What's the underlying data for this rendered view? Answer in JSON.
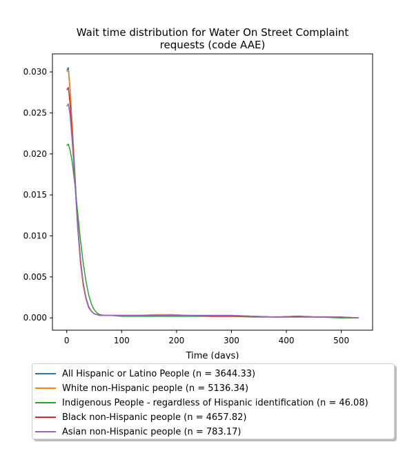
{
  "chart_data": {
    "type": "line",
    "title": "Wait time distribution  for Water On Street Complaint requests (code AAE)",
    "title_lines": [
      "Wait time distribution  for Water On Street Complaint",
      "requests (code AAE)"
    ],
    "xlabel": "Time (days)",
    "ylabel": "",
    "xlim": [
      -26,
      557
    ],
    "ylim": [
      -0.0015,
      0.0322
    ],
    "xticks": [
      0,
      100,
      200,
      300,
      400,
      500
    ],
    "xtick_labels": [
      "0",
      "100",
      "200",
      "300",
      "400",
      "500"
    ],
    "yticks": [
      0.0,
      0.005,
      0.01,
      0.015,
      0.02,
      0.025,
      0.03
    ],
    "ytick_labels": [
      "0.000",
      "0.005",
      "0.010",
      "0.015",
      "0.020",
      "0.025",
      "0.030"
    ],
    "grid": false,
    "legend_position": "below",
    "series": [
      {
        "name": "All Hispanic or Latino People (n = 3644.33)",
        "color": "#1f77b4",
        "x": [
          0,
          3,
          6,
          10,
          15,
          20,
          25,
          30,
          35,
          40,
          45,
          50,
          55,
          60,
          70,
          80,
          100,
          130,
          160,
          190,
          220,
          260,
          300,
          340,
          380,
          420,
          460,
          500,
          532
        ],
        "y": [
          0.0302,
          0.0305,
          0.028,
          0.0235,
          0.0175,
          0.0115,
          0.0072,
          0.0042,
          0.0024,
          0.0013,
          0.0008,
          0.0005,
          0.0004,
          0.0003,
          0.0003,
          0.0003,
          0.0003,
          0.0003,
          0.0003,
          0.0004,
          0.0003,
          0.0003,
          0.0003,
          0.0002,
          0.0001,
          0.0002,
          0.0001,
          0.0001,
          0.0
        ]
      },
      {
        "name": "White non-Hispanic people (n = 5136.34)",
        "color": "#ff7f0e",
        "x": [
          0,
          3,
          6,
          10,
          15,
          20,
          25,
          30,
          35,
          40,
          45,
          50,
          55,
          60,
          70,
          80,
          100,
          130,
          160,
          190,
          220,
          260,
          300,
          340,
          380,
          420,
          460,
          500,
          532
        ],
        "y": [
          0.03,
          0.0302,
          0.0278,
          0.023,
          0.0168,
          0.011,
          0.0068,
          0.004,
          0.0023,
          0.0013,
          0.0008,
          0.0005,
          0.0004,
          0.0003,
          0.0003,
          0.0003,
          0.0003,
          0.0003,
          0.0004,
          0.0004,
          0.0003,
          0.0003,
          0.0003,
          0.0002,
          0.0001,
          0.0002,
          0.0001,
          0.0001,
          0.0
        ]
      },
      {
        "name": "Indigenous People - regardless of Hispanic identification (n = 46.08)",
        "color": "#2ca02c",
        "x": [
          0,
          3,
          6,
          10,
          15,
          20,
          25,
          30,
          35,
          40,
          45,
          50,
          55,
          60,
          70,
          80,
          100,
          130,
          160,
          190,
          220,
          260,
          300,
          340,
          380,
          420,
          460,
          500,
          532
        ],
        "y": [
          0.021,
          0.0212,
          0.0205,
          0.019,
          0.0162,
          0.0128,
          0.0095,
          0.0067,
          0.0045,
          0.0028,
          0.0017,
          0.001,
          0.0006,
          0.0004,
          0.0003,
          0.0003,
          0.0002,
          0.0002,
          0.0002,
          0.0002,
          0.0002,
          0.0002,
          0.0002,
          0.0001,
          0.0001,
          0.0001,
          0.0001,
          0.0,
          0.0
        ]
      },
      {
        "name": "Black non-Hispanic people (n = 4657.82)",
        "color": "#d62728",
        "x": [
          0,
          3,
          6,
          10,
          15,
          20,
          25,
          30,
          35,
          40,
          45,
          50,
          55,
          60,
          70,
          80,
          100,
          130,
          160,
          190,
          220,
          260,
          300,
          340,
          380,
          420,
          460,
          500,
          532
        ],
        "y": [
          0.0278,
          0.0281,
          0.0262,
          0.0222,
          0.0165,
          0.011,
          0.0069,
          0.0041,
          0.0024,
          0.0013,
          0.0008,
          0.0005,
          0.0004,
          0.0003,
          0.0003,
          0.0003,
          0.0003,
          0.0003,
          0.0003,
          0.0003,
          0.0003,
          0.0002,
          0.0002,
          0.0002,
          0.0001,
          0.0002,
          0.0001,
          0.0001,
          0.0
        ]
      },
      {
        "name": "Asian non-Hispanic people (n = 783.17)",
        "color": "#9467bd",
        "x": [
          0,
          3,
          6,
          10,
          15,
          20,
          25,
          30,
          35,
          40,
          45,
          50,
          55,
          60,
          70,
          80,
          100,
          130,
          160,
          190,
          220,
          260,
          300,
          340,
          380,
          420,
          460,
          500,
          532
        ],
        "y": [
          0.0258,
          0.0261,
          0.0248,
          0.0215,
          0.0165,
          0.0112,
          0.0072,
          0.0043,
          0.0025,
          0.0014,
          0.0008,
          0.0005,
          0.0004,
          0.0003,
          0.0003,
          0.0003,
          0.0003,
          0.0003,
          0.0003,
          0.0003,
          0.0003,
          0.0003,
          0.0003,
          0.0002,
          0.0001,
          0.0001,
          0.0001,
          0.0001,
          0.0
        ]
      }
    ]
  }
}
